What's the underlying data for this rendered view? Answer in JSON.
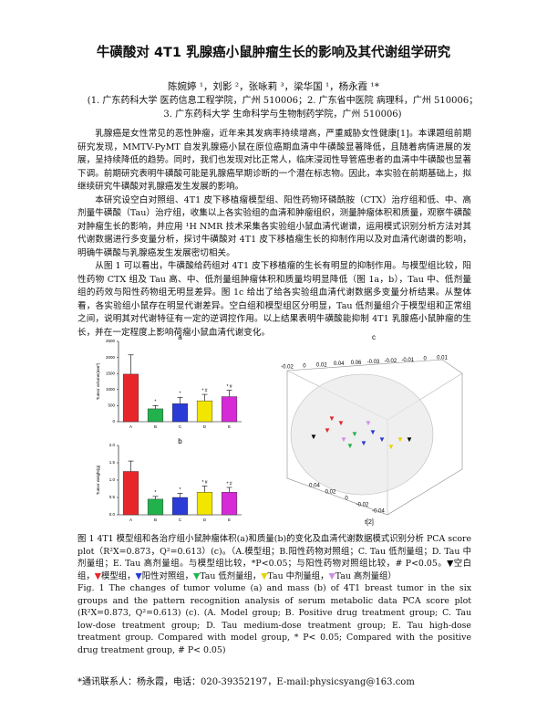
{
  "header": {
    "title": "牛磺酸对 4T1 乳腺癌小鼠肿瘤生长的影响及其代谢组学研究",
    "authors": "陈婉婷 ¹，刘影 ²，张咏莉 ³，梁华国 ¹，杨永霞 ¹*",
    "affiliation": "(1. 广东药科大学 医药信息工程学院，广州 510006；2. 广东省中医院 病理科，广州 510006；3. 广东药科大学 生命科学与生物制药学院，广州 510006)"
  },
  "body": {
    "paragraphs": [
      "乳腺癌是女性常见的恶性肿瘤，近年来其发病率持续增高，严重威胁女性健康[1]。本课题组前期研究发现，MMTV-PyMT 自发乳腺癌小鼠在原位癌期血清中牛磺酸显著降低，且随着病情进展的发展，呈持续降低的趋势。同时，我们也发现对比正常人，临床浸润性导管癌患者的血清中牛磺酸也显著下调。前期研究表明牛磺酸可能是乳腺癌早期诊断的一个潜在标志物。因此，本实验在前期基础上，拟继续研究牛磺酸对乳腺癌发生发展的影响。",
      "本研究设空白对照组、4T1 皮下移植瘤模型组、阳性药物环磷酰胺（CTX）治疗组和低、中、高剂量牛磺酸（Tau）治疗组，收集以上各实验组的血清和肿瘤组织，测量肿瘤体积和质量，观察牛磺酸对肿瘤生长的影响，并应用 ¹H NMR 技术采集各实验组小鼠血清代谢谱，运用模式识别分析方法对其代谢数据进行多变量分析，探讨牛磺酸对 4T1 皮下移植瘤生长的抑制作用以及对血清代谢谱的影响，明确牛磺酸与乳腺癌发生发展密切相关。",
      "从图 1 可以看出，牛磺酸给药组对 4T1 皮下移植瘤的生长有明显的抑制作用。与模型组比较，阳性药物 CTX 组及 Tau 高、中、低剂量组肿瘤体积和质量均明显降低（图 1a，b），Tau 中、低剂量组的药效与阳性药物组无明显差异。图 1c 给出了给各实验组血清代谢数据多变量分析结果。从整体看，各实验组小鼠存在明显代谢差异。空白组和模型组区分明显，Tau 低剂量组介于模型组和正常组之间，说明其对代谢特征有一定的逆调控作用。以上结果表明牛磺酸能抑制 4T1 乳腺癌小鼠肿瘤的生长，并在一定程度上影响荷瘤小鼠血清代谢变化。"
    ]
  },
  "chart_data": [
    {
      "type": "bar",
      "panel": "a",
      "y_label": "Tumor volume(mm³)",
      "categories": [
        "A",
        "B",
        "C",
        "D",
        "E"
      ],
      "values": [
        1480,
        400,
        560,
        650,
        780
      ],
      "errors": [
        600,
        100,
        200,
        200,
        200
      ],
      "annotations": [
        null,
        "*",
        "*",
        "* #",
        "* #"
      ],
      "colors": [
        "#e8262a",
        "#22b24c",
        "#2a3bd6",
        "#f2e600",
        "#d62ad6"
      ],
      "ylim": [
        0,
        2500
      ],
      "yticks": [
        0,
        500,
        1000,
        1500,
        2000,
        2500
      ]
    },
    {
      "type": "bar",
      "panel": "b",
      "y_label": "Tumor weight(g)",
      "categories": [
        "A",
        "B",
        "C",
        "D",
        "E"
      ],
      "values": [
        1.25,
        0.45,
        0.5,
        0.65,
        0.65
      ],
      "errors": [
        0.3,
        0.08,
        0.12,
        0.18,
        0.14
      ],
      "annotations": [
        null,
        "*",
        "*",
        "* #",
        "* #"
      ],
      "colors": [
        "#e8262a",
        "#22b24c",
        "#2a3bd6",
        "#f2e600",
        "#d62ad6"
      ],
      "ylim": [
        0,
        2.0
      ],
      "yticks": [
        {
          "value": 0,
          "label": "0.0"
        },
        {
          "value": 0.5,
          "label": "0.5"
        },
        {
          "value": 1.0,
          "label": "1.0"
        },
        {
          "value": 1.5,
          "label": "1.5"
        },
        {
          "value": 2.0,
          "label": "2.0"
        }
      ]
    }
  ],
  "panel_c": {
    "panel": "c",
    "axis_label": "t[2]",
    "top_ticks": [
      "-0.02",
      "0",
      "0.02",
      "0.04",
      "0.06",
      "-0.03",
      "-0.02",
      "-0.01",
      "0",
      "0.01"
    ],
    "bottom_ticks": [
      "0.04",
      "0.02",
      "0",
      "-0.02",
      "-0.04"
    ]
  },
  "figure": {
    "caption_cn": "图 1 4T1 模型组和各治疗组小鼠肿瘤体积(a)和质量(b)的变化及血清代谢数据模式识别分析 PCA score plot（R²X=0.873，Q²=0.613）(c)。（A.模型组；B.阳性药物对照组；C. Tau 低剂量组；D. Tau 中剂量组；E. Tau 高剂量组。与模型组比较，*P<0.05；与阳性药物对照组比较，# P<0.05。",
    "legend": [
      {
        "symbol": "▼",
        "label": "空白组",
        "color": "#000000"
      },
      {
        "symbol": "▼",
        "label": "模型组",
        "color": "#e8262a"
      },
      {
        "symbol": "▼",
        "label": "阳性对照组",
        "color": "#2a3bd6"
      },
      {
        "symbol": "▼",
        "label": "Tau 低剂量组",
        "color": "#22b24c"
      },
      {
        "symbol": "▼",
        "label": "Tau 中剂量组",
        "color": "#e6d400"
      },
      {
        "symbol": "▼",
        "label": "Tau 高剂量组",
        "color": "#d08ee8"
      }
    ],
    "legend_end": "）",
    "caption_en": "Fig. 1 The changes of tumor volume (a) and mass (b) of 4T1 breast tumor in the six groups and the pattern recognition analysis of serum metabolic data PCA score plot (R²X=0.873, Q²=0.613) (c). (A. Model group; B. Positive drug treatment group; C. Tau low-dose treatment group; D. Tau medium-dose treatment group; E. Tau high-dose treatment group. Compared with model group, * P< 0.05; Compared with the positive drug treatment group, # P< 0.05)"
  },
  "footer": {
    "contact": "*通讯联系人：杨永霞，电话：020-39352197，E-mail:physicsyang@163.com"
  }
}
